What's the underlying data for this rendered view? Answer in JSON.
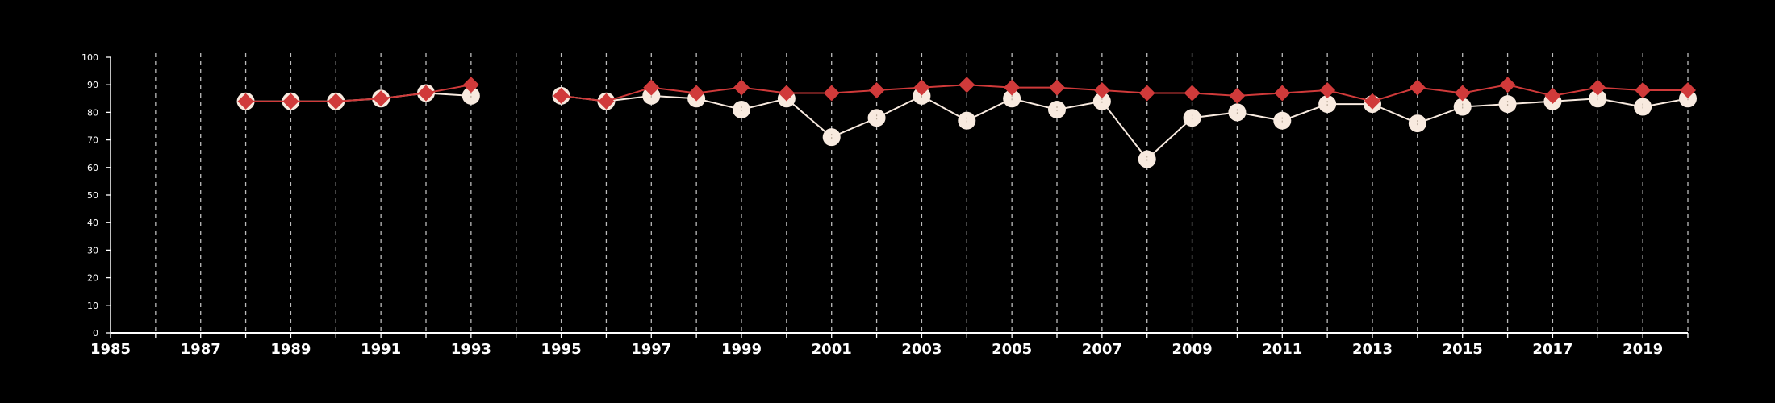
{
  "chart_data": {
    "type": "line",
    "title": "",
    "xlabel": "",
    "ylabel": "",
    "xlim": [
      1985,
      2020
    ],
    "ylim": [
      0,
      100
    ],
    "y_ticks": [
      "0",
      "10",
      "20",
      "30",
      "40",
      "50",
      "60",
      "70",
      "80",
      "90",
      "100"
    ],
    "x_ticks": [
      "1985",
      "1987",
      "1989",
      "1991",
      "1993",
      "1995",
      "1997",
      "1999",
      "2001",
      "2003",
      "2005",
      "2007",
      "2009",
      "2011",
      "2013",
      "2015",
      "2017",
      "2019"
    ],
    "vertical_gridlines": "dashed, every year",
    "background": "#000000",
    "series": [
      {
        "marker": "circle",
        "color": "#f8eadf",
        "x": [
          1988,
          1989,
          1990,
          1991,
          1992,
          1993,
          1995,
          1996,
          1997,
          1998,
          1999,
          2000,
          2001,
          2002,
          2003,
          2004,
          2005,
          2006,
          2007,
          2008,
          2009,
          2010,
          2011,
          2012,
          2013,
          2014,
          2015,
          2016,
          2017,
          2018,
          2019,
          2020
        ],
        "values": [
          84,
          84,
          84,
          85,
          87,
          86,
          86,
          84,
          86,
          85,
          81,
          85,
          71,
          78,
          86,
          77,
          85,
          81,
          84,
          63,
          78,
          80,
          77,
          83,
          83,
          76,
          82,
          83,
          84,
          85,
          82,
          85
        ]
      },
      {
        "marker": "diamond",
        "color": "#d03a3a",
        "x": [
          1988,
          1989,
          1990,
          1991,
          1992,
          1993,
          1995,
          1996,
          1997,
          1998,
          1999,
          2000,
          2001,
          2002,
          2003,
          2004,
          2005,
          2006,
          2007,
          2008,
          2009,
          2010,
          2011,
          2012,
          2013,
          2014,
          2015,
          2016,
          2017,
          2018,
          2019,
          2020
        ],
        "values": [
          84,
          84,
          84,
          85,
          87,
          90,
          86,
          84,
          89,
          87,
          89,
          87,
          87,
          88,
          89,
          90,
          89,
          89,
          88,
          87,
          87,
          86,
          87,
          88,
          84,
          89,
          87,
          90,
          86,
          89,
          88,
          88
        ]
      }
    ]
  }
}
